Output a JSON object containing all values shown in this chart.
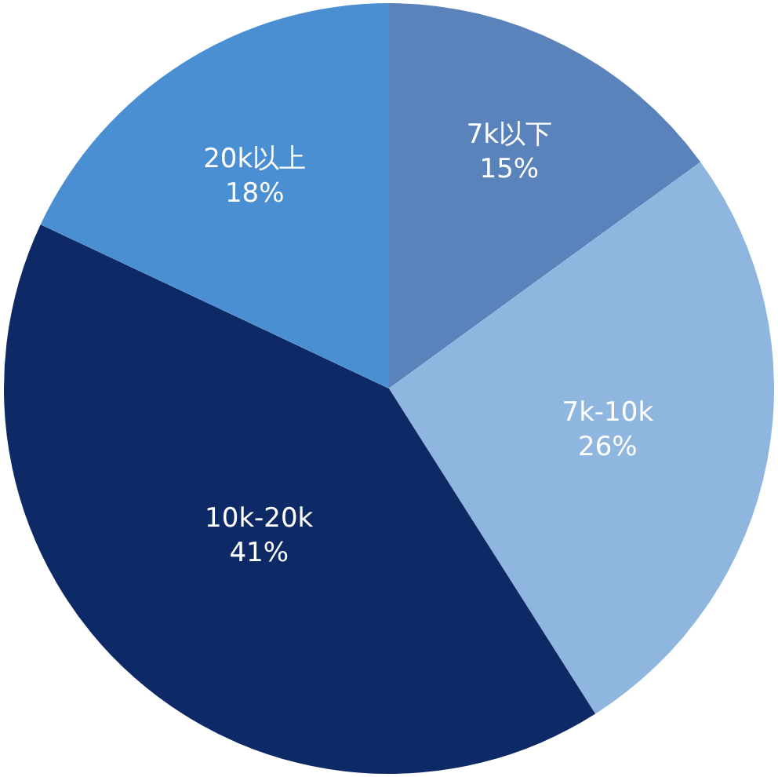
{
  "chart_data": {
    "type": "pie",
    "categories": [
      "7k以下",
      "7k-10k",
      "10k-20k",
      "20k以上"
    ],
    "values": [
      15,
      26,
      41,
      18
    ],
    "value_labels": [
      "15%",
      "26%",
      "41%",
      "18%"
    ],
    "colors": [
      "#5b83bb",
      "#8fb6df",
      "#0e2a66",
      "#4a8fd2"
    ],
    "legend": false
  }
}
